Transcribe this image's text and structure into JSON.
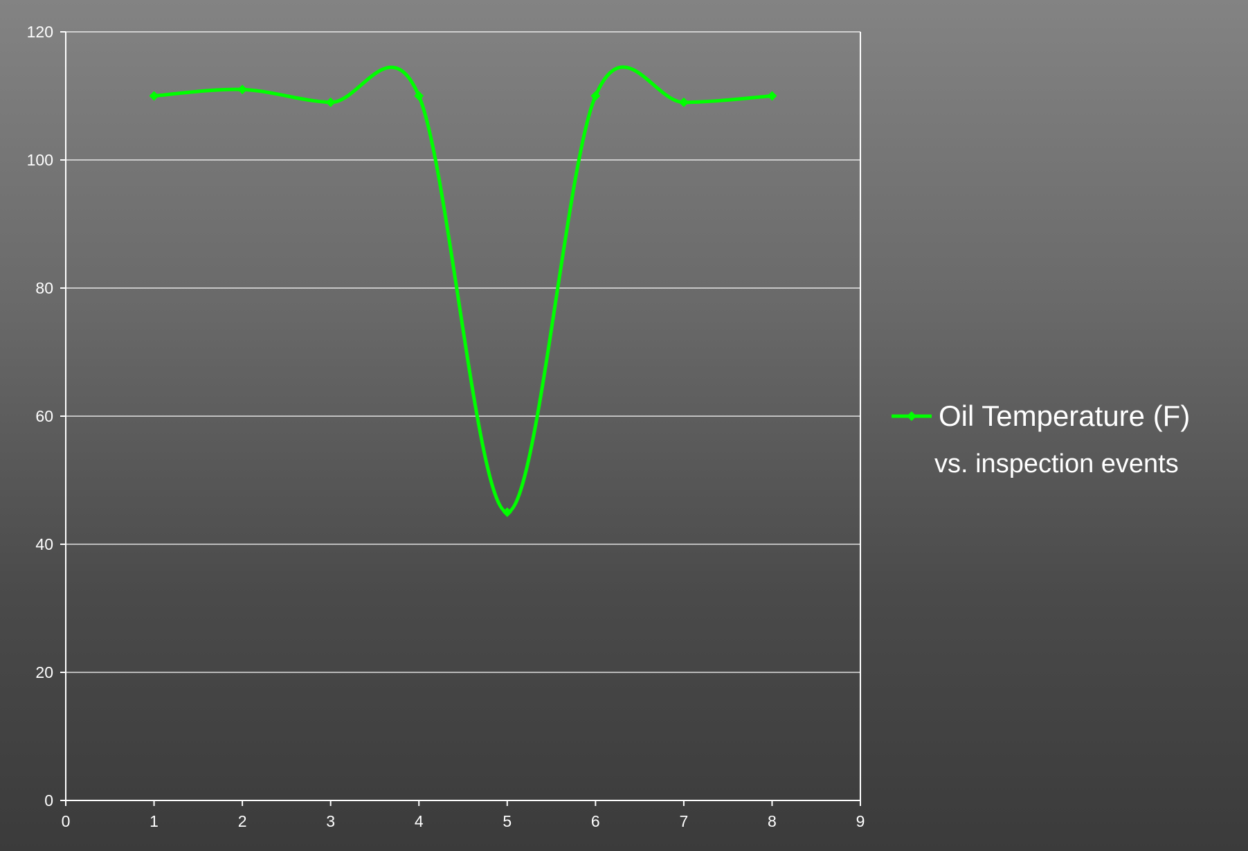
{
  "chart_data": {
    "type": "line",
    "xlim": [
      0,
      9
    ],
    "ylim": [
      0,
      120
    ],
    "x_ticks": [
      0,
      1,
      2,
      3,
      4,
      5,
      6,
      7,
      8,
      9
    ],
    "y_ticks": [
      0,
      20,
      40,
      60,
      80,
      100,
      120
    ],
    "grid": "horizontal",
    "smooth": true,
    "legend_placement": "right",
    "series": [
      {
        "name": "Oil Temperature (F)",
        "color": "#00ff00",
        "x": [
          1,
          2,
          3,
          4,
          5,
          6,
          7,
          8
        ],
        "y": [
          110,
          111,
          109,
          110,
          45,
          110,
          109,
          110
        ]
      }
    ],
    "legend_subtitle": "vs. inspection events"
  }
}
